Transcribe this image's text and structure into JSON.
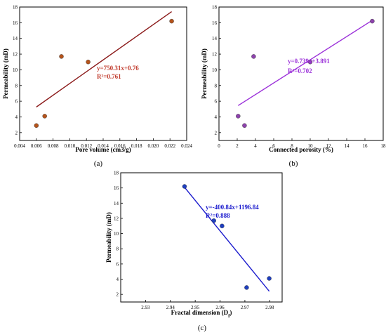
{
  "chart_data": [
    {
      "type": "scatter",
      "panel_label": "(a)",
      "xlabel": "Pore volume (cm3/g)",
      "ylabel": "Permeability (mD)",
      "xlim": [
        0.004,
        0.024
      ],
      "ylim": [
        1,
        18
      ],
      "xticks": [
        0.004,
        0.006,
        0.008,
        0.01,
        0.012,
        0.014,
        0.016,
        0.018,
        0.02,
        0.022,
        0.024
      ],
      "xtick_labels": [
        "0.004",
        "0.006",
        "0.008",
        "0.010",
        "0.012",
        "0.014",
        "0.016",
        "0.018",
        "0.020",
        "0.022",
        "0.024"
      ],
      "yticks": [
        2,
        4,
        6,
        8,
        10,
        12,
        14,
        16,
        18
      ],
      "ytick_labels": [
        "2",
        "4",
        "6",
        "8",
        "10",
        "12",
        "14",
        "16",
        "18"
      ],
      "x": [
        0.006,
        0.007,
        0.009,
        0.0122,
        0.0222
      ],
      "y": [
        2.9,
        4.1,
        11.7,
        11.0,
        16.2
      ],
      "marker_color": "#b5541c",
      "fit": {
        "slope": 750.31,
        "intercept": 0.76,
        "x_range": [
          0.006,
          0.0222
        ],
        "color": "#8b1a1a"
      },
      "equation": "y=750.31x+0.76",
      "r2": "R²=0.761",
      "annotation_color": "#c0392b",
      "grid": false
    },
    {
      "type": "scatter",
      "panel_label": "(b)",
      "xlabel": "Connected porosity (%)",
      "ylabel": "Permeability (mD)",
      "xlim": [
        0,
        18
      ],
      "ylim": [
        1,
        18
      ],
      "xticks": [
        0,
        2,
        4,
        6,
        8,
        10,
        12,
        14,
        16,
        18
      ],
      "xtick_labels": [
        "0",
        "2",
        "4",
        "6",
        "8",
        "10",
        "12",
        "14",
        "16",
        "18"
      ],
      "yticks": [
        2,
        4,
        6,
        8,
        10,
        12,
        14,
        16,
        18
      ],
      "ytick_labels": [
        "2",
        "4",
        "6",
        "8",
        "10",
        "12",
        "14",
        "16",
        "18"
      ],
      "x": [
        2.1,
        2.8,
        3.8,
        10.0,
        16.8
      ],
      "y": [
        4.1,
        2.9,
        11.7,
        11.0,
        16.2
      ],
      "marker_color": "#8e44ad",
      "fit": {
        "slope": 0.739,
        "intercept": 3.891,
        "x_range": [
          2.1,
          16.8
        ],
        "color": "#9b30d9"
      },
      "equation": "y=0.739x+3.891",
      "r2": "R²=0.702",
      "annotation_color": "#9b30d9",
      "grid": false
    },
    {
      "type": "scatter",
      "panel_label": "(c)",
      "xlabel": "Fractal dimension (D",
      "xlabel_sub": "f",
      "xlabel_end": ")",
      "ylabel": "Permeability (mD)",
      "xlim": [
        2.92,
        2.985
      ],
      "ylim": [
        1,
        18
      ],
      "xticks": [
        2.93,
        2.94,
        2.95,
        2.96,
        2.97,
        2.98
      ],
      "xtick_labels": [
        "2.93",
        "2.94",
        "2.95",
        "2.96",
        "2.97",
        "2.98"
      ],
      "yticks": [
        2,
        4,
        6,
        8,
        10,
        12,
        14,
        16,
        18
      ],
      "ytick_labels": [
        "2",
        "4",
        "6",
        "8",
        "10",
        "12",
        "14",
        "16",
        "18"
      ],
      "x": [
        2.9457,
        2.9575,
        2.9608,
        2.9707,
        2.9798
      ],
      "y": [
        16.2,
        11.7,
        11.0,
        2.9,
        4.1
      ],
      "marker_color": "#1f3fbf",
      "fit": {
        "slope": -400.84,
        "intercept": 1196.84,
        "x_range": [
          2.9457,
          2.9798
        ],
        "color": "#1a1acd"
      },
      "equation": "y=-400.84x+1196.84",
      "r2": "R²=0.888",
      "annotation_color": "#1a1acd",
      "grid": false
    }
  ]
}
